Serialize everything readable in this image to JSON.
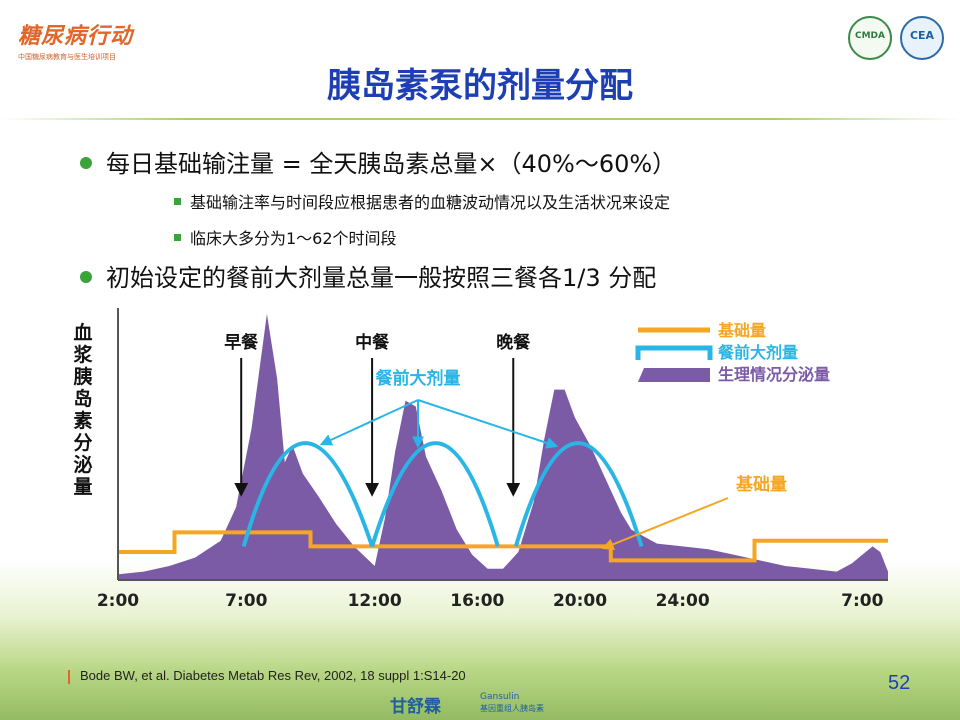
{
  "header": {
    "logo_text": "糖尿病行动",
    "logo_subtext": "中国糖尿病教育与医生培训项目",
    "badge_left": "CMDA",
    "badge_right": "CEA"
  },
  "title": "胰岛素泵的剂量分配",
  "bullets": [
    {
      "text": "每日基础输注量 = 全天胰岛素总量×（40%～60%）"
    },
    {
      "text": "初始设定的餐前大剂量总量一般按照三餐各1/3 分配"
    }
  ],
  "sub_bullets": [
    {
      "text": "基础输注率与时间段应根据患者的血糖波动情况以及生活状况来设定"
    },
    {
      "text": "临床大多分为1～62个时间段"
    }
  ],
  "chart_data": {
    "type": "area",
    "ylabel": "血浆胰岛素分泌量",
    "xlabel": "",
    "x_ticks": [
      "2:00",
      "7:00",
      "12:00",
      "16:00",
      "20:00",
      "24:00",
      "7:00"
    ],
    "x_tick_hours": [
      2,
      7,
      12,
      16,
      20,
      24,
      31
    ],
    "xlim": [
      2,
      32
    ],
    "ylim": [
      0,
      100
    ],
    "colors": {
      "basal": "#f5a623",
      "bolus": "#29b6e6",
      "physiological": "#7b5aa6"
    },
    "legend": {
      "position": "top-right",
      "items": [
        {
          "label": "基础量",
          "color": "#f5a623"
        },
        {
          "label": "餐前大剂量",
          "color": "#29b6e6"
        },
        {
          "label": "生理情况分泌量",
          "color": "#7b5aa6"
        }
      ]
    },
    "meals": [
      {
        "label": "早餐",
        "hour": 6.8
      },
      {
        "label": "中餐",
        "hour": 11.9
      },
      {
        "label": "晚餐",
        "hour": 17.4
      }
    ],
    "annotations": {
      "bolus_label": "餐前大剂量",
      "basal_label": "基础量"
    },
    "series": [
      {
        "name": "生理情况分泌量",
        "x": [
          2,
          3,
          4,
          5,
          6,
          6.6,
          7.2,
          7.8,
          8.2,
          8.5,
          8.8,
          9.2,
          9.8,
          10.5,
          11.2,
          12,
          12.4,
          12.8,
          13.2,
          13.6,
          14,
          14.6,
          15.2,
          15.8,
          16.4,
          17,
          17.6,
          18.2,
          18.6,
          19,
          19.4,
          19.8,
          20.4,
          21,
          21.6,
          22,
          23,
          24,
          25,
          26,
          27,
          28,
          29,
          30,
          30.6,
          31,
          31.4,
          31.7,
          32
        ],
        "values": [
          2,
          3,
          5,
          8,
          14,
          26,
          54,
          95,
          72,
          42,
          48,
          38,
          30,
          20,
          12,
          5,
          22,
          46,
          64,
          62,
          44,
          32,
          18,
          9,
          4,
          4,
          10,
          28,
          50,
          68,
          68,
          58,
          48,
          36,
          24,
          18,
          13,
          12,
          11,
          9,
          7,
          5,
          4,
          3,
          6,
          9,
          12,
          10,
          3
        ]
      },
      {
        "name": "基础量",
        "x": [
          2,
          4.2,
          4.2,
          9.5,
          9.5,
          21.2,
          21.2,
          26.8,
          26.8,
          32
        ],
        "values": [
          10,
          10,
          17,
          17,
          12,
          12,
          7,
          7,
          14,
          14
        ]
      },
      {
        "name": "餐前大剂量",
        "arcs": [
          {
            "start": 6.9,
            "peak": 9.2,
            "end": 11.9,
            "max": 52
          },
          {
            "start": 11.9,
            "peak": 14.4,
            "end": 16.8,
            "max": 52
          },
          {
            "start": 17.5,
            "peak": 19.9,
            "end": 22.4,
            "max": 52
          }
        ]
      }
    ]
  },
  "footer": {
    "citation": "Bode BW, et al. Diabetes Metab Res Rev, 2002, 18 suppl 1:S14-20",
    "page_number": "52",
    "brand_cn": "甘舒霖",
    "brand_en": "Gansulin",
    "brand_tag": "基因重组人胰岛素"
  }
}
